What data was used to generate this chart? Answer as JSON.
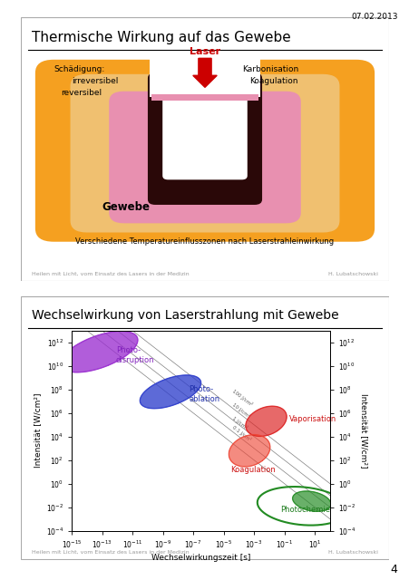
{
  "page_date": "07.02.2013",
  "page_number": "4",
  "panel1": {
    "title": "Thermische Wirkung auf das Gewebe",
    "subtitle": "Verschiedene Temperatureinflusszonen nach Laserstrahleinwirkung",
    "footer_left": "Heilen mit Licht, vom Einsatz des Lasers in der Medizin",
    "footer_right": "H. Lubatschowski",
    "labels": {
      "laser": "Laser",
      "karbonisation": "Karbonisation",
      "koagulation": "Koagulation",
      "schaedigung": "Schädigung:",
      "irreversibel": "irreversibel",
      "reversibel": "reversibel",
      "gewebe": "Gewebe"
    },
    "colors": {
      "outer_orange": "#F5A020",
      "mid_orange": "#F0C070",
      "inner_pink": "#E890B0",
      "dark_ring": "#2A0808",
      "white_center": "#FFFFFF",
      "arrow_red": "#CC0000",
      "laser_text": "#CC0000"
    }
  },
  "panel2": {
    "title": "Wechselwirkung von Laserstrahlung mit Gewebe",
    "xlabel": "Wechselwirkungszeit [s]",
    "ylabel_left": "Intensität [W/cm²]",
    "ylabel_right": "Intensität [W/cm²]",
    "footer_left": "Heilen mit Licht, vom Einsatz des Lasers in der Medizin",
    "footer_right": "H. Lubatschowski"
  }
}
